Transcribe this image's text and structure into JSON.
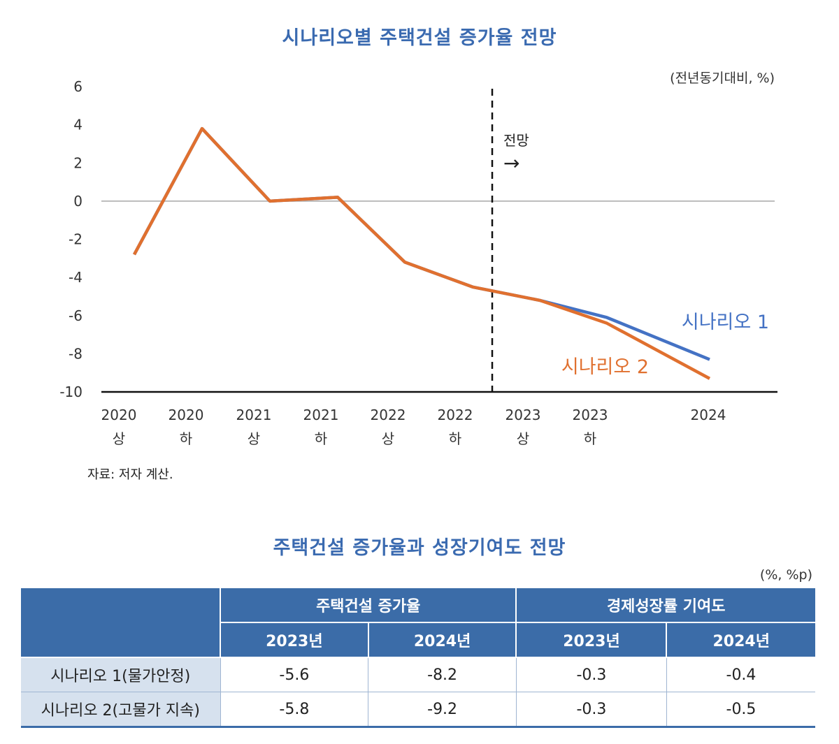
{
  "chart_data": {
    "type": "line",
    "title": "시나리오별 주택건설 증가율 전망",
    "unit_label": "(전년동기대비, %)",
    "categories": [
      [
        "2020",
        "상"
      ],
      [
        "2020",
        "하"
      ],
      [
        "2021",
        "상"
      ],
      [
        "2021",
        "하"
      ],
      [
        "2022",
        "상"
      ],
      [
        "2022",
        "하"
      ],
      [
        "2023",
        "상"
      ],
      [
        "2023",
        "하"
      ],
      [
        "2024",
        ""
      ]
    ],
    "ylim": [
      -10,
      6
    ],
    "yticks": [
      6,
      4,
      2,
      0,
      -2,
      -4,
      -6,
      -8,
      -10
    ],
    "forecast_label": "전망",
    "forecast_arrow": "→",
    "series": [
      {
        "name": "시나리오 1",
        "color": "#4472c4",
        "values": [
          -2.8,
          3.8,
          0.0,
          0.2,
          -3.2,
          -4.5,
          -5.2,
          -6.1,
          -8.3
        ]
      },
      {
        "name": "시나리오 2",
        "color": "#e0702f",
        "values": [
          -2.8,
          3.8,
          0.0,
          0.2,
          -3.2,
          -4.5,
          -5.2,
          -6.4,
          -9.3
        ]
      }
    ],
    "source": "자료: 저자 계산."
  },
  "table": {
    "title": "주택건설 증가율과 성장기여도 전망",
    "unit": "(%, %p)",
    "groups": [
      "주택건설 증가율",
      "경제성장률 기여도"
    ],
    "years": [
      "2023년",
      "2024년",
      "2023년",
      "2024년"
    ],
    "rows": [
      {
        "label": "시나리오 1(물가안정)",
        "values": [
          "-5.6",
          "-8.2",
          "-0.3",
          "-0.4"
        ]
      },
      {
        "label": "시나리오 2(고물가 지속)",
        "values": [
          "-5.8",
          "-9.2",
          "-0.3",
          "-0.5"
        ]
      }
    ]
  }
}
